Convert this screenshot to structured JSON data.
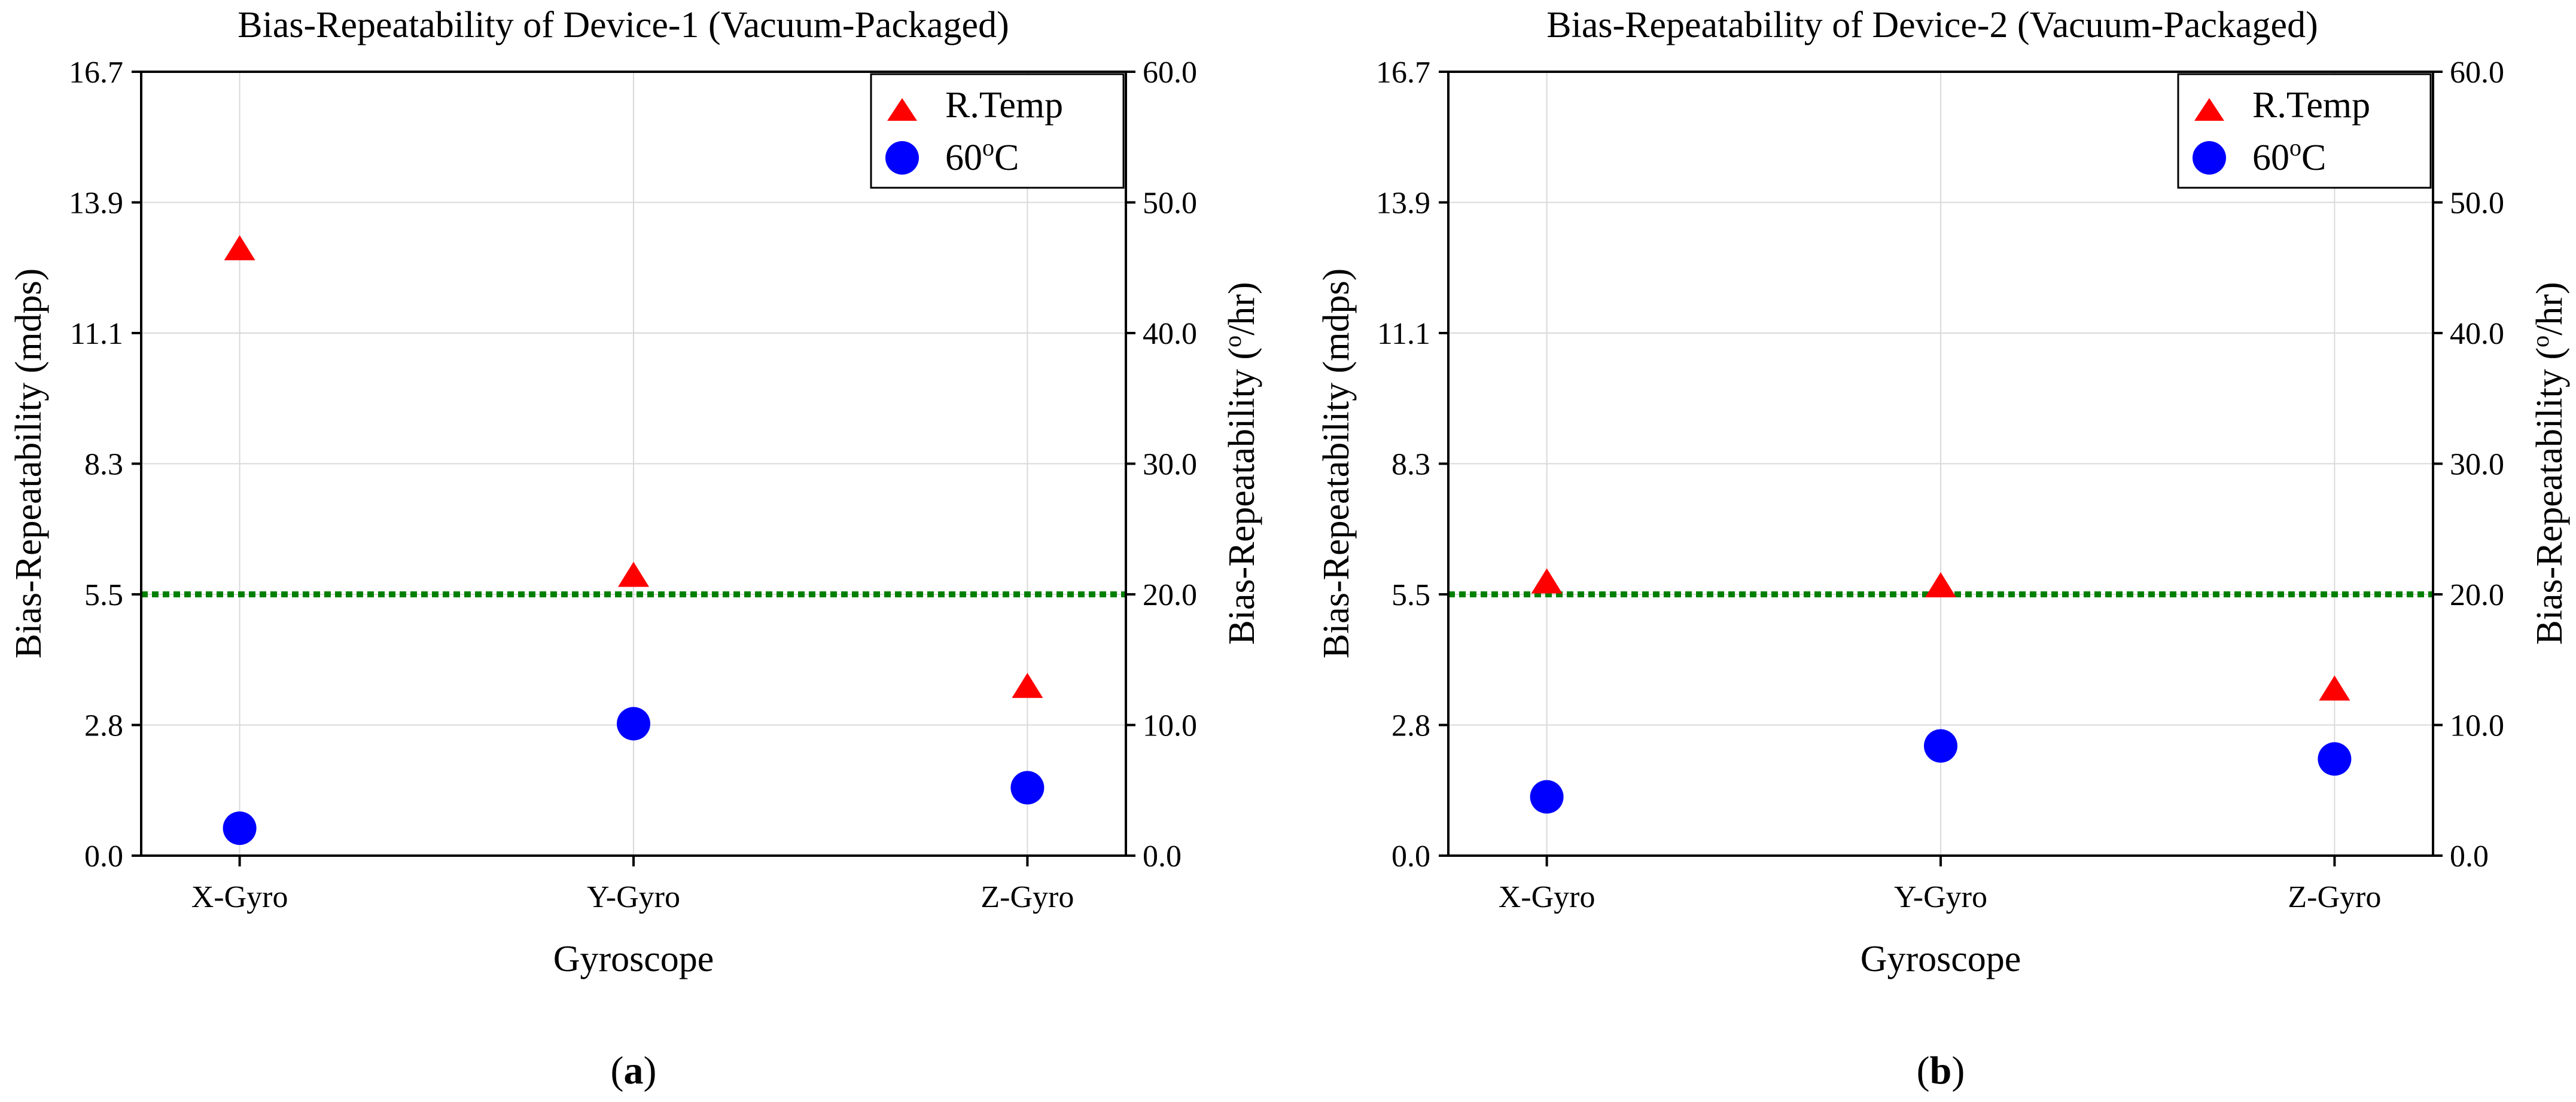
{
  "colors": {
    "rtemp": "#ff0000",
    "hot": "#0000ff",
    "threshold": "#008000",
    "grid": "#d9d9d9"
  },
  "chart_data": [
    {
      "type": "scatter",
      "caption_letter": "a",
      "caption_open": "(",
      "caption_close": ")",
      "title": "Bias-Repeatability of Device-1 (Vacuum-Packaged)",
      "xlabel": "Gyroscope",
      "ylabel_left": "Bias-Repeatability (mdps)",
      "ylabel_right_prefix": "Bias-Repeatability (",
      "ylabel_right_sup": "o",
      "ylabel_right_suffix": "/hr)",
      "categories": [
        "X-Gyro",
        "Y-Gyro",
        "Z-Gyro"
      ],
      "left_ylim": [
        0,
        16.7
      ],
      "left_ticks": [
        "0.0",
        "2.8",
        "5.5",
        "8.3",
        "11.1",
        "13.9",
        "16.7"
      ],
      "right_ylim": [
        0,
        60
      ],
      "right_ticks": [
        "0.0",
        "10.0",
        "20.0",
        "30.0",
        "40.0",
        "50.0",
        "60.0"
      ],
      "threshold_right": 20,
      "series": [
        {
          "name": "R.Temp",
          "marker": "triangle",
          "values_right": [
            46.3,
            21.3,
            12.8
          ]
        },
        {
          "name": "60",
          "name_sup": "o",
          "name_suffix": "C",
          "marker": "circle",
          "values_right": [
            2.1,
            10.1,
            5.2
          ]
        }
      ],
      "legend": "top-right"
    },
    {
      "type": "scatter",
      "caption_letter": "b",
      "caption_open": "(",
      "caption_close": ")",
      "title": "Bias-Repeatability of Device-2 (Vacuum-Packaged)",
      "xlabel": "Gyroscope",
      "ylabel_left": "Bias-Repeatability (mdps)",
      "ylabel_right_prefix": "Bias-Repeatability (",
      "ylabel_right_sup": "o",
      "ylabel_right_suffix": "/hr)",
      "categories": [
        "X-Gyro",
        "Y-Gyro",
        "Z-Gyro"
      ],
      "left_ylim": [
        0,
        16.7
      ],
      "left_ticks": [
        "0.0",
        "2.8",
        "5.5",
        "8.3",
        "11.1",
        "13.9",
        "16.7"
      ],
      "right_ylim": [
        0,
        60
      ],
      "right_ticks": [
        "0.0",
        "10.0",
        "20.0",
        "30.0",
        "40.0",
        "50.0",
        "60.0"
      ],
      "threshold_right": 20,
      "series": [
        {
          "name": "R.Temp",
          "marker": "triangle",
          "values_right": [
            20.8,
            20.5,
            12.6
          ]
        },
        {
          "name": "60",
          "name_sup": "o",
          "name_suffix": "C",
          "marker": "circle",
          "values_right": [
            4.5,
            8.4,
            7.4
          ]
        }
      ],
      "legend": "top-right"
    }
  ]
}
